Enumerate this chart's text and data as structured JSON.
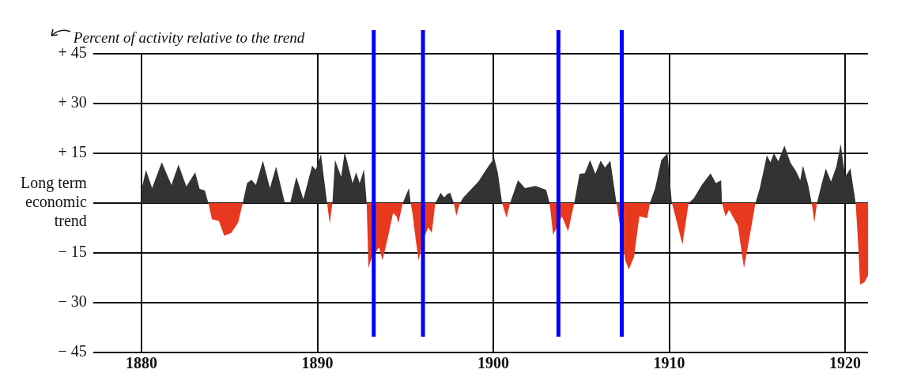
{
  "chart_data": {
    "type": "area",
    "ylabel": "Percent of activity relative to the trend",
    "xlim": [
      1877.7,
      1921.3
    ],
    "xticks": [
      1880,
      1890,
      1900,
      1910,
      1920
    ],
    "ylim": [
      -45,
      45
    ],
    "yticks": [
      {
        "value": 45,
        "label": "+ 45"
      },
      {
        "value": 30,
        "label": "+ 30"
      },
      {
        "value": 15,
        "label": "+ 15"
      },
      {
        "value": 0,
        "label": "Long term\neconomic\ntrend"
      },
      {
        "value": -15,
        "label": "− 15"
      },
      {
        "value": -30,
        "label": "− 30"
      },
      {
        "value": -45,
        "label": "− 45"
      }
    ],
    "grid": true,
    "legend": false,
    "series": [
      {
        "color": "#333333",
        "x": [
          1880,
          1880.25,
          1880.6,
          1881.15,
          1881.7,
          1882.1,
          1882.55,
          1883.05,
          1883.3,
          1883.6,
          1883.8,
          1885.75,
          1886,
          1886.25,
          1886.5,
          1886.9,
          1887.3,
          1887.65,
          1888.15,
          1888.45,
          1888.8,
          1889.2,
          1889.7,
          1889.9,
          1890.2,
          1890.55,
          1890.85,
          1891,
          1891.35,
          1891.55,
          1892,
          1892.2,
          1892.4,
          1892.65,
          1892.8,
          1894.85,
          1895.2,
          1895.3,
          1896.7,
          1897,
          1897.2,
          1897.4,
          1897.55,
          1897.75,
          1898.1,
          1898.3,
          1898.65,
          1899.15,
          1899.6,
          1900.05,
          1900.25,
          1900.5,
          1900.95,
          1901.4,
          1901.8,
          1902.4,
          1903,
          1903.2,
          1904.6,
          1904.9,
          1905.2,
          1905.5,
          1905.8,
          1906.1,
          1906.35,
          1906.65,
          1907,
          1908.9,
          1909.2,
          1909.55,
          1909.9,
          1910.15,
          1911.1,
          1911.4,
          1911.85,
          1912.35,
          1912.65,
          1912.95,
          1913,
          1914.9,
          1915.15,
          1915.55,
          1915.75,
          1915.95,
          1916.2,
          1916.55,
          1916.9,
          1917.2,
          1917.45,
          1917.6,
          1917.9,
          1918.1,
          1918.4,
          1918.65,
          1918.9,
          1919.2,
          1919.5,
          1919.75,
          1920,
          1920.3,
          1920.6
        ],
        "values": [
          4,
          10,
          4.5,
          12.3,
          5.5,
          11.6,
          5,
          9.3,
          4.3,
          3.8,
          0,
          0,
          6,
          7,
          5.5,
          12.8,
          4.5,
          11,
          0,
          0,
          7.9,
          1.2,
          11.3,
          10,
          14.7,
          0,
          0,
          13,
          7.9,
          15.4,
          6,
          9.3,
          6,
          10.2,
          0,
          0,
          4.5,
          0,
          0,
          3.1,
          1.7,
          2.8,
          3.1,
          0,
          0,
          1.7,
          3.7,
          6.5,
          10.2,
          13.6,
          9.3,
          0,
          0,
          6.9,
          4.5,
          5.2,
          4,
          0,
          0,
          8.8,
          9,
          13,
          8.8,
          12.8,
          10.7,
          12.8,
          0,
          0,
          4.5,
          13,
          15,
          0,
          0,
          1.5,
          5.5,
          9,
          6,
          6.9,
          0,
          0,
          4.5,
          14.4,
          12.3,
          15,
          12.6,
          17.3,
          12.1,
          9.7,
          6.9,
          11.3,
          5.5,
          0,
          0,
          5.5,
          10.4,
          6.5,
          11,
          17.8,
          7.9,
          10.5,
          0
        ]
      },
      {
        "color": "#e8391e",
        "x": [
          1883.8,
          1884,
          1884.4,
          1884.7,
          1885.1,
          1885.5,
          1885.75,
          1890.55,
          1890.7,
          1890.85,
          1892.8,
          1892.9,
          1893.05,
          1893.5,
          1893.7,
          1894,
          1894.3,
          1894.5,
          1894.6,
          1894.85,
          1895.3,
          1895.4,
          1895.6,
          1895.75,
          1896.05,
          1896.3,
          1896.5,
          1896.7,
          1897.75,
          1897.9,
          1898.1,
          1900.5,
          1900.75,
          1900.95,
          1903.2,
          1903.4,
          1903.9,
          1904.25,
          1904.6,
          1907,
          1907.5,
          1907.7,
          1908,
          1908.3,
          1908.75,
          1908.9,
          1910.15,
          1910.35,
          1910.75,
          1911.1,
          1913,
          1913.2,
          1913.4,
          1913.9,
          1914.25,
          1914.65,
          1914.9,
          1918.1,
          1918.25,
          1918.4,
          1920.6,
          1920.75,
          1920.85,
          1921.1,
          1921.3
        ],
        "values": [
          0,
          -4.8,
          -5.4,
          -9.8,
          -9,
          -5.8,
          0,
          0,
          -6.2,
          0,
          0,
          -19.5,
          -17,
          -13.3,
          -17.2,
          -10.5,
          -3,
          -4,
          -6,
          0,
          0,
          -3,
          -11.5,
          -17.2,
          -10.5,
          -7.3,
          -9,
          0,
          0,
          -3.8,
          0,
          0,
          -4.4,
          0,
          0,
          -9.6,
          -4,
          -8.5,
          0,
          0,
          -17.2,
          -20,
          -16.2,
          -4,
          -4.5,
          0,
          0,
          -4,
          -12.5,
          0,
          0,
          -4,
          -2,
          -6.8,
          -19.5,
          -7.7,
          0,
          0,
          -5.8,
          0,
          0,
          -13.3,
          -24.6,
          -23.8,
          -21.8
        ]
      }
    ],
    "ref_lines": [
      {
        "axis": "x",
        "value": 1893.2,
        "color": "#0000ff"
      },
      {
        "axis": "x",
        "value": 1896,
        "color": "#0000ff"
      },
      {
        "axis": "x",
        "value": 1903.7,
        "color": "#0000ff"
      },
      {
        "axis": "x",
        "value": 1907.3,
        "color": "#0000ff"
      }
    ]
  }
}
